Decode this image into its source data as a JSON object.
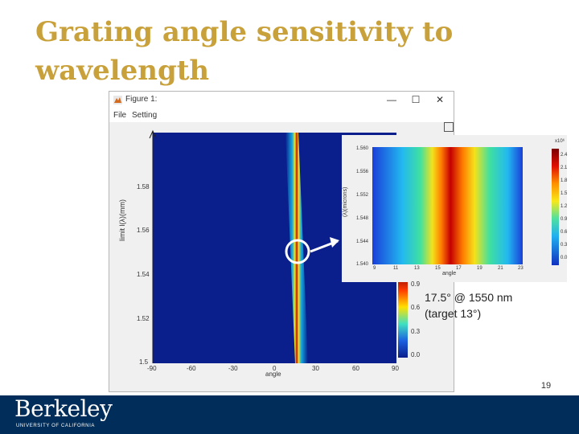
{
  "slide": {
    "title": "Grating angle sensitivity to wavelength",
    "annotation": [
      "17.5° @ 1550 nm",
      "(target 13°)"
    ],
    "page_number": "19"
  },
  "window": {
    "title": "Figure 1:",
    "menu": [
      "File",
      "Setting"
    ],
    "controls": [
      "—",
      "☐",
      "✕"
    ]
  },
  "main_plot": {
    "xlabel": "angle",
    "ylabel": "limit l(λ)(mm)",
    "x_ticks": [
      "-90",
      "-60",
      "-30",
      "0",
      "30",
      "60",
      "90"
    ],
    "y_ticks": [
      "1.58",
      "1.56",
      "1.54",
      "1.52",
      "1.5"
    ],
    "colorbar_ticks": [
      "0.9",
      "0.6",
      "0.3",
      "0.0"
    ]
  },
  "inset_plot": {
    "xlabel": "angle",
    "ylabel": "(λ)(microns)",
    "x_ticks": [
      "9",
      "11",
      "13",
      "15",
      "17",
      "19",
      "21",
      "23"
    ],
    "y_ticks": [
      "1.560",
      "1.556",
      "1.552",
      "1.548",
      "1.544",
      "1.540"
    ],
    "colorbar_exponent": "x10⁶",
    "colorbar_ticks": [
      "2.4",
      "2.1",
      "1.8",
      "1.5",
      "1.2",
      "0.9",
      "0.6",
      "0.3",
      "0.0"
    ]
  },
  "logo": {
    "name": "Berkeley",
    "subtitle": "UNIVERSITY OF CALIFORNIA"
  },
  "colors": {
    "title": "#c9a13b",
    "footer": "#002d59",
    "highlight_circle": "#ffffff"
  }
}
